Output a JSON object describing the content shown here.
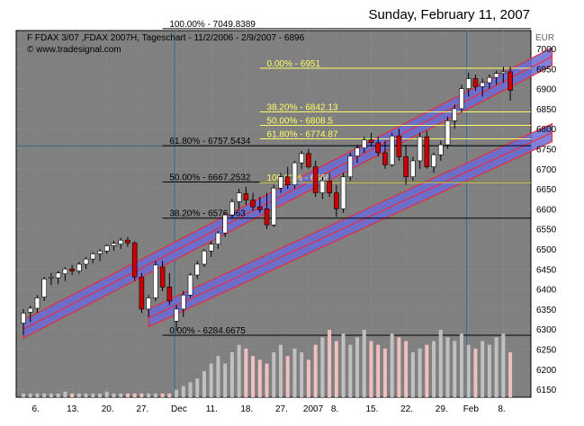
{
  "page": {
    "date_header": "Sunday, February 11, 2007"
  },
  "chart_data": {
    "type": "candlestick",
    "title": "F FDAX 3/07 ,FDAX 2007H, Tageschart - 11/2/2006 - 2/9/2007 - 6896",
    "source": "© www.tradesignal.com",
    "currency_label": "EUR",
    "ylim": [
      6130,
      7045
    ],
    "y_ticks": [
      6150,
      6200,
      6250,
      6300,
      6350,
      6400,
      6450,
      6500,
      6550,
      6600,
      6650,
      6700,
      6750,
      6800,
      6850,
      6900,
      6950,
      7000
    ],
    "x_tick_labels": [
      "6.",
      "13.",
      "20.",
      "27.",
      "Dec",
      "11.",
      "18.",
      "27.",
      "2007",
      "8.",
      "15.",
      "22.",
      "29.",
      "Feb",
      "8."
    ],
    "x_tick_index": [
      2,
      7,
      12,
      17,
      22,
      27,
      32,
      37,
      41,
      45,
      50,
      55,
      60,
      64,
      69
    ],
    "colors": {
      "background": "#808080",
      "up_candle": "#ffffff",
      "down_candle": "#cc0000",
      "channel_fill": "#6b6bd6",
      "channel_line": "#ff2020",
      "fib_yellow": "#ffff66",
      "fib_black": "#000000",
      "volume_up": "#c0c0c0",
      "volume_down": "#f0c0c0"
    },
    "fib_black": [
      {
        "label": "100.00% - 7049.8389",
        "value": 7049.84
      },
      {
        "label": "61.80% - 6757.5434",
        "value": 6757.54
      },
      {
        "label": "50.00% - 6667.2532",
        "value": 6667.25
      },
      {
        "label": "38.20% - 6576.963",
        "value": 6576.96
      },
      {
        "label": "0.00% - 6284.6675",
        "value": 6284.67
      }
    ],
    "fib_yellow": [
      {
        "label": "0.00% - 6951",
        "value": 6951
      },
      {
        "label": "38.20% - 6842.13",
        "value": 6842.13
      },
      {
        "label": "50.00% - 6808.5",
        "value": 6808.5
      },
      {
        "label": "61.80% - 6774.87",
        "value": 6774.87
      },
      {
        "label": "100.00% - 6666",
        "value": 6666
      }
    ],
    "channels": [
      {
        "start": {
          "x": 0,
          "y": 6300
        },
        "end": {
          "x": 76,
          "y": 6980
        },
        "width": 45
      },
      {
        "start": {
          "x": 18,
          "y": 6328
        },
        "end": {
          "x": 76,
          "y": 6790
        },
        "width": 45
      }
    ],
    "candles": [
      {
        "o": 6315,
        "h": 6350,
        "l": 6285,
        "c": 6340
      },
      {
        "o": 6342,
        "h": 6358,
        "l": 6318,
        "c": 6352
      },
      {
        "o": 6352,
        "h": 6385,
        "l": 6340,
        "c": 6378
      },
      {
        "o": 6380,
        "h": 6430,
        "l": 6370,
        "c": 6425
      },
      {
        "o": 6428,
        "h": 6440,
        "l": 6410,
        "c": 6430
      },
      {
        "o": 6428,
        "h": 6445,
        "l": 6412,
        "c": 6440
      },
      {
        "o": 6438,
        "h": 6455,
        "l": 6420,
        "c": 6450
      },
      {
        "o": 6450,
        "h": 6460,
        "l": 6435,
        "c": 6445
      },
      {
        "o": 6445,
        "h": 6468,
        "l": 6438,
        "c": 6462
      },
      {
        "o": 6462,
        "h": 6480,
        "l": 6450,
        "c": 6475
      },
      {
        "o": 6475,
        "h": 6492,
        "l": 6465,
        "c": 6488
      },
      {
        "o": 6488,
        "h": 6500,
        "l": 6470,
        "c": 6495
      },
      {
        "o": 6495,
        "h": 6512,
        "l": 6488,
        "c": 6508
      },
      {
        "o": 6508,
        "h": 6520,
        "l": 6496,
        "c": 6514
      },
      {
        "o": 6512,
        "h": 6528,
        "l": 6500,
        "c": 6522
      },
      {
        "o": 6522,
        "h": 6530,
        "l": 6505,
        "c": 6515
      },
      {
        "o": 6515,
        "h": 6520,
        "l": 6420,
        "c": 6430
      },
      {
        "o": 6430,
        "h": 6440,
        "l": 6340,
        "c": 6350
      },
      {
        "o": 6350,
        "h": 6385,
        "l": 6330,
        "c": 6378
      },
      {
        "o": 6378,
        "h": 6470,
        "l": 6370,
        "c": 6460
      },
      {
        "o": 6455,
        "h": 6470,
        "l": 6395,
        "c": 6405
      },
      {
        "o": 6405,
        "h": 6440,
        "l": 6360,
        "c": 6370
      },
      {
        "o": 6320,
        "h": 6360,
        "l": 6295,
        "c": 6350
      },
      {
        "o": 6350,
        "h": 6395,
        "l": 6330,
        "c": 6385
      },
      {
        "o": 6385,
        "h": 6440,
        "l": 6378,
        "c": 6435
      },
      {
        "o": 6435,
        "h": 6470,
        "l": 6425,
        "c": 6462
      },
      {
        "o": 6462,
        "h": 6500,
        "l": 6455,
        "c": 6495
      },
      {
        "o": 6495,
        "h": 6520,
        "l": 6480,
        "c": 6512
      },
      {
        "o": 6512,
        "h": 6545,
        "l": 6500,
        "c": 6540
      },
      {
        "o": 6540,
        "h": 6590,
        "l": 6530,
        "c": 6585
      },
      {
        "o": 6585,
        "h": 6625,
        "l": 6575,
        "c": 6618
      },
      {
        "o": 6618,
        "h": 6650,
        "l": 6600,
        "c": 6640
      },
      {
        "o": 6638,
        "h": 6655,
        "l": 6610,
        "c": 6622
      },
      {
        "o": 6622,
        "h": 6640,
        "l": 6595,
        "c": 6605
      },
      {
        "o": 6605,
        "h": 6630,
        "l": 6590,
        "c": 6598
      },
      {
        "o": 6600,
        "h": 6640,
        "l": 6550,
        "c": 6560
      },
      {
        "o": 6560,
        "h": 6660,
        "l": 6555,
        "c": 6652
      },
      {
        "o": 6652,
        "h": 6690,
        "l": 6640,
        "c": 6680
      },
      {
        "o": 6680,
        "h": 6705,
        "l": 6650,
        "c": 6660
      },
      {
        "o": 6660,
        "h": 6720,
        "l": 6650,
        "c": 6715
      },
      {
        "o": 6715,
        "h": 6745,
        "l": 6700,
        "c": 6738
      },
      {
        "o": 6738,
        "h": 6750,
        "l": 6700,
        "c": 6705
      },
      {
        "o": 6705,
        "h": 6720,
        "l": 6630,
        "c": 6640
      },
      {
        "o": 6640,
        "h": 6680,
        "l": 6625,
        "c": 6670
      },
      {
        "o": 6670,
        "h": 6690,
        "l": 6630,
        "c": 6640
      },
      {
        "o": 6640,
        "h": 6660,
        "l": 6580,
        "c": 6600
      },
      {
        "o": 6600,
        "h": 6690,
        "l": 6590,
        "c": 6680
      },
      {
        "o": 6680,
        "h": 6740,
        "l": 6670,
        "c": 6732
      },
      {
        "o": 6732,
        "h": 6760,
        "l": 6715,
        "c": 6752
      },
      {
        "o": 6752,
        "h": 6780,
        "l": 6740,
        "c": 6772
      },
      {
        "o": 6772,
        "h": 6790,
        "l": 6755,
        "c": 6765
      },
      {
        "o": 6765,
        "h": 6780,
        "l": 6730,
        "c": 6740
      },
      {
        "o": 6740,
        "h": 6770,
        "l": 6700,
        "c": 6710
      },
      {
        "o": 6710,
        "h": 6790,
        "l": 6705,
        "c": 6782
      },
      {
        "o": 6782,
        "h": 6800,
        "l": 6720,
        "c": 6730
      },
      {
        "o": 6730,
        "h": 6760,
        "l": 6660,
        "c": 6680
      },
      {
        "o": 6680,
        "h": 6730,
        "l": 6670,
        "c": 6720
      },
      {
        "o": 6720,
        "h": 6790,
        "l": 6700,
        "c": 6780
      },
      {
        "o": 6780,
        "h": 6795,
        "l": 6700,
        "c": 6705
      },
      {
        "o": 6705,
        "h": 6740,
        "l": 6690,
        "c": 6735
      },
      {
        "o": 6735,
        "h": 6770,
        "l": 6720,
        "c": 6760
      },
      {
        "o": 6760,
        "h": 6830,
        "l": 6750,
        "c": 6820
      },
      {
        "o": 6820,
        "h": 6860,
        "l": 6800,
        "c": 6850
      },
      {
        "o": 6850,
        "h": 6910,
        "l": 6840,
        "c": 6900
      },
      {
        "o": 6900,
        "h": 6940,
        "l": 6880,
        "c": 6925
      },
      {
        "o": 6925,
        "h": 6935,
        "l": 6895,
        "c": 6905
      },
      {
        "o": 6905,
        "h": 6925,
        "l": 6880,
        "c": 6915
      },
      {
        "o": 6915,
        "h": 6935,
        "l": 6900,
        "c": 6928
      },
      {
        "o": 6928,
        "h": 6945,
        "l": 6910,
        "c": 6938
      },
      {
        "o": 6938,
        "h": 6955,
        "l": 6915,
        "c": 6942
      },
      {
        "o": 6942,
        "h": 6955,
        "l": 6870,
        "c": 6896
      }
    ],
    "volume_rel": [
      2,
      2,
      2,
      2,
      2,
      2,
      3,
      2,
      2,
      2,
      2,
      2,
      3,
      2,
      2,
      2,
      2,
      2,
      2,
      2,
      2,
      2,
      4,
      6,
      8,
      10,
      14,
      18,
      22,
      18,
      24,
      28,
      26,
      22,
      20,
      18,
      24,
      28,
      22,
      26,
      24,
      20,
      28,
      32,
      36,
      30,
      34,
      28,
      32,
      36,
      30,
      28,
      26,
      34,
      32,
      30,
      24,
      26,
      28,
      30,
      36,
      32,
      30,
      34,
      28,
      26,
      30,
      28,
      32,
      34,
      24
    ]
  }
}
